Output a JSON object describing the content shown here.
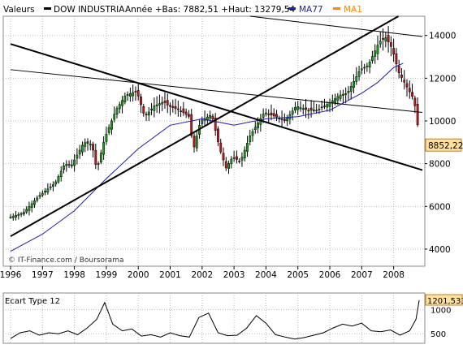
{
  "header": {
    "label_valeurs": "Valeurs",
    "label_instrument": "DOW INDUSTRIA",
    "label_stats": "Année +Bas: 7882,51 +Haut: 13279,54",
    "legend_ma77": "MA77",
    "legend_ma1": "MA1"
  },
  "colors": {
    "up_candle": "#1a9e1a",
    "down_candle": "#c81414",
    "ma77": "#1e1ea8",
    "ma1": "#ff8a00",
    "grid": "#bbbbbb",
    "last_price_box": "#ffe0a0"
  },
  "watermark": "© IT-Finance.com / Boursorama",
  "last_value_label": "8852,22",
  "chart_data": [
    {
      "type": "candlestick",
      "title": "DOW INDUSTRIA",
      "x_range": [
        1996,
        2008.9
      ],
      "ylim": [
        3200,
        14900
      ],
      "y_ticks": [
        4000,
        6000,
        8000,
        10000,
        12000,
        14000
      ],
      "x_ticks": [
        1996,
        1997,
        1998,
        1999,
        2000,
        2001,
        2002,
        2003,
        2004,
        2005,
        2006,
        2007,
        2008
      ],
      "grid": true,
      "legend_placement": "top",
      "candle_path": [
        [
          1996.0,
          5500
        ],
        [
          1996.4,
          5700
        ],
        [
          1996.9,
          6500
        ],
        [
          1997.4,
          7100
        ],
        [
          1997.7,
          8000
        ],
        [
          1997.9,
          7900
        ],
        [
          1998.3,
          9000
        ],
        [
          1998.55,
          8900
        ],
        [
          1998.7,
          7700
        ],
        [
          1998.95,
          9200
        ],
        [
          1999.3,
          10500
        ],
        [
          1999.6,
          11200
        ],
        [
          1999.95,
          11400
        ],
        [
          2000.2,
          10200
        ],
        [
          2000.5,
          10700
        ],
        [
          2000.8,
          10900
        ],
        [
          2000.95,
          10700
        ],
        [
          2001.3,
          10500
        ],
        [
          2001.6,
          10200
        ],
        [
          2001.72,
          8600
        ],
        [
          2001.95,
          10000
        ],
        [
          2002.3,
          10300
        ],
        [
          2002.55,
          8700
        ],
        [
          2002.75,
          7800
        ],
        [
          2002.95,
          8300
        ],
        [
          2003.2,
          8100
        ],
        [
          2003.5,
          9300
        ],
        [
          2003.95,
          10400
        ],
        [
          2004.3,
          10200
        ],
        [
          2004.6,
          10000
        ],
        [
          2004.95,
          10700
        ],
        [
          2005.3,
          10500
        ],
        [
          2005.6,
          10500
        ],
        [
          2005.95,
          10800
        ],
        [
          2006.3,
          11200
        ],
        [
          2006.55,
          11300
        ],
        [
          2006.95,
          12400
        ],
        [
          2007.2,
          12600
        ],
        [
          2007.55,
          13700
        ],
        [
          2007.75,
          13900
        ],
        [
          2007.95,
          13400
        ],
        [
          2008.15,
          12300
        ],
        [
          2008.45,
          11500
        ],
        [
          2008.6,
          11100
        ],
        [
          2008.72,
          10400
        ],
        [
          2008.8,
          8850
        ]
      ],
      "series": [
        {
          "name": "MA77",
          "x": [
            1996.0,
            1997.0,
            1998.0,
            1999.0,
            2000.0,
            2001.0,
            2002.0,
            2003.0,
            2003.5,
            2004.0,
            2005.0,
            2006.0,
            2007.0,
            2007.5,
            2008.0,
            2008.3
          ],
          "values": [
            3900,
            4700,
            5800,
            7300,
            8700,
            9800,
            10100,
            9800,
            9950,
            10100,
            10200,
            10500,
            11300,
            11800,
            12500,
            12700
          ]
        }
      ],
      "annotations": [
        {
          "label": "trendline",
          "from": [
            1996.0,
            4600
          ],
          "to": [
            2008.15,
            14900
          ]
        },
        {
          "label": "trendline",
          "from": [
            1996.0,
            13600
          ],
          "to": [
            2008.9,
            7700
          ]
        },
        {
          "label": "trendline",
          "from": [
            1996.0,
            12400
          ],
          "to": [
            2008.9,
            10400
          ]
        },
        {
          "label": "trendline",
          "from": [
            2003.5,
            14900
          ],
          "to": [
            2008.9,
            13950
          ]
        }
      ]
    },
    {
      "type": "line",
      "title": "Ecart Type 12",
      "ylim": [
        300,
        1350
      ],
      "y_ticks": [
        500,
        1000
      ],
      "x_ticks": [
        1996,
        1997,
        1998,
        1999,
        2000,
        2001,
        2002,
        2003,
        2004,
        2005,
        2006,
        2007,
        2008
      ],
      "grid": true,
      "last_value_label": "1201,533",
      "series": [
        {
          "name": "Ecart Type 12",
          "x": [
            1996.0,
            1996.3,
            1996.6,
            1996.9,
            1997.2,
            1997.5,
            1997.8,
            1998.1,
            1998.4,
            1998.7,
            1998.95,
            1999.2,
            1999.5,
            1999.8,
            2000.1,
            2000.4,
            2000.7,
            2001.0,
            2001.3,
            2001.6,
            2001.9,
            2002.2,
            2002.5,
            2002.8,
            2003.1,
            2003.4,
            2003.7,
            2004.0,
            2004.3,
            2004.6,
            2004.9,
            2005.2,
            2005.5,
            2005.8,
            2006.1,
            2006.4,
            2006.7,
            2007.0,
            2007.3,
            2007.6,
            2007.9,
            2008.2,
            2008.5,
            2008.7,
            2008.8
          ],
          "values": [
            400,
            520,
            560,
            470,
            520,
            500,
            560,
            480,
            620,
            800,
            1150,
            700,
            560,
            600,
            450,
            480,
            430,
            520,
            460,
            430,
            840,
            930,
            520,
            460,
            470,
            620,
            880,
            720,
            480,
            430,
            390,
            420,
            470,
            520,
            620,
            700,
            660,
            720,
            560,
            540,
            580,
            470,
            560,
            800,
            1201.533
          ]
        }
      ]
    }
  ],
  "x_axis_labels": [
    "1996",
    "1997",
    "1998",
    "1999",
    "2000",
    "2001",
    "2002",
    "2003",
    "2004",
    "2005",
    "2006",
    "2007",
    "2008"
  ],
  "y_axis_labels_main": [
    "4000",
    "6000",
    "8000",
    "10000",
    "12000",
    "14000"
  ],
  "y_axis_labels_sub": [
    "500",
    "1000"
  ],
  "sub_title": "Ecart Type 12"
}
